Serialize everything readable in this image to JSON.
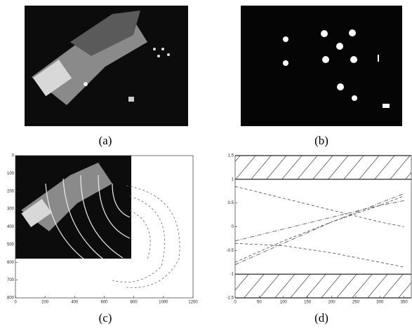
{
  "panels": [
    {
      "caption": "(a)"
    },
    {
      "caption": "(b)"
    },
    {
      "caption": "(c)",
      "type": "image-plot",
      "xlim": [
        0,
        1200
      ],
      "ylim": [
        800,
        0
      ],
      "xticks": [
        0,
        200,
        400,
        600,
        800,
        1000,
        1200
      ],
      "yticks": [
        0,
        100,
        200,
        300,
        400,
        500,
        600,
        700,
        800
      ]
    },
    {
      "caption": "(d)",
      "type": "line",
      "xlim": [
        0,
        365
      ],
      "ylim": [
        -1.5,
        1.5
      ],
      "xticks": [
        0,
        50,
        100,
        150,
        200,
        250,
        300,
        350
      ],
      "yticks": [
        1.5,
        1,
        0.5,
        0,
        -0.5,
        -1,
        -1.5
      ],
      "bands": [
        [
          1,
          1.5
        ],
        [
          -1.5,
          -1
        ]
      ],
      "series": [
        {
          "x": [
            0,
            100,
            200,
            300,
            350
          ],
          "values": [
            0.85,
            0.6,
            0.35,
            0.1,
            0.0
          ]
        },
        {
          "x": [
            0,
            100,
            200,
            300,
            350
          ],
          "values": [
            -0.8,
            -0.35,
            0.1,
            0.5,
            0.7
          ]
        },
        {
          "x": [
            0,
            100,
            200,
            300,
            350
          ],
          "values": [
            -0.75,
            -0.3,
            0.1,
            0.45,
            0.65
          ]
        },
        {
          "x": [
            0,
            100,
            200,
            300,
            350
          ],
          "values": [
            -0.3,
            -0.05,
            0.2,
            0.45,
            0.55
          ]
        },
        {
          "x": [
            0,
            100,
            200,
            300,
            350
          ],
          "values": [
            -0.35,
            -0.4,
            -0.55,
            -0.75,
            -0.85
          ]
        }
      ]
    }
  ]
}
